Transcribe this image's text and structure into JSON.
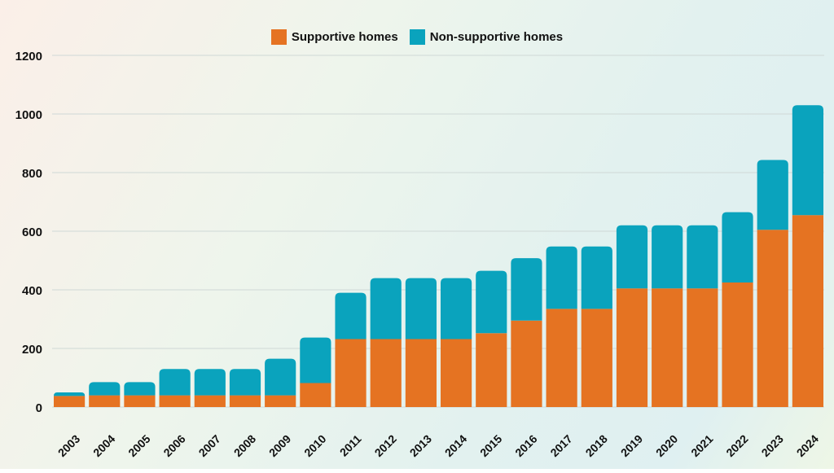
{
  "colors": {
    "supportive": "#e57322",
    "non_supportive": "#0aa3bd",
    "grid": "#cfd8d6"
  },
  "chart_data": {
    "type": "bar",
    "stacked": true,
    "title": "",
    "xlabel": "",
    "ylabel": "",
    "ylim": [
      0,
      1200
    ],
    "yticks": [
      0,
      200,
      400,
      600,
      800,
      1000,
      1200
    ],
    "grid": true,
    "legend_position": "top-center",
    "categories": [
      "2003",
      "2004",
      "2005",
      "2006",
      "2007",
      "2008",
      "2009",
      "2010",
      "2011",
      "2012",
      "2013",
      "2014",
      "2015",
      "2016",
      "2017",
      "2018",
      "2019",
      "2020",
      "2021",
      "2022",
      "2023",
      "2024"
    ],
    "series": [
      {
        "name": "Supportive homes",
        "values": [
          38,
          40,
          40,
          40,
          40,
          40,
          40,
          82,
          232,
          232,
          232,
          232,
          252,
          295,
          335,
          335,
          405,
          405,
          405,
          425,
          605,
          655
        ]
      },
      {
        "name": "Non-supportive homes",
        "values": [
          12,
          45,
          45,
          90,
          90,
          90,
          125,
          155,
          158,
          208,
          208,
          208,
          213,
          213,
          213,
          213,
          215,
          215,
          215,
          240,
          238,
          375
        ]
      }
    ]
  }
}
